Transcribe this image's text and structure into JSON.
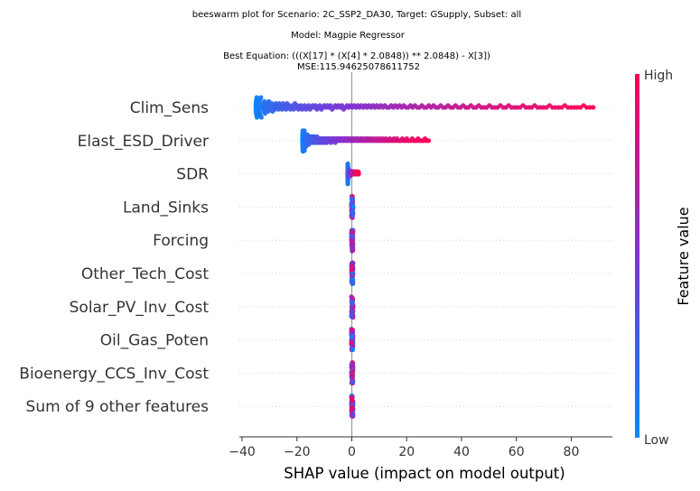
{
  "titles": {
    "line1": "beeswarm plot for Scenario: 2C_SSP2_DA30, Target: GSupply, Subset: all",
    "line2": "Model: Magpie Regressor",
    "line3": "Best Equation: (((X[17] * (X[4] * 2.0848)) ** 2.0848) - X[3])",
    "line4": "MSE:115.94625078611752"
  },
  "colors": {
    "low": "#008bfb",
    "mid": "#7c35d6",
    "high": "#ff0052",
    "zero_line": "#999999",
    "row_line": "#cccccc"
  },
  "chart_data": {
    "type": "scatter",
    "subtype": "beeswarm",
    "xlabel": "SHAP value (impact on model output)",
    "xlim": [
      -41,
      95
    ],
    "xticks": [
      -40,
      -20,
      0,
      20,
      40,
      60,
      80
    ],
    "colorbar": {
      "title": "Feature value",
      "high_label": "High",
      "low_label": "Low"
    },
    "features": [
      {
        "name": "Clim_Sens",
        "shap_min": -35,
        "shap_max": 88,
        "shap_mean_abs": 18
      },
      {
        "name": "Elast_ESD_Driver",
        "shap_min": -18,
        "shap_max": 28,
        "shap_mean_abs": 6
      },
      {
        "name": "SDR",
        "shap_min": -1.5,
        "shap_max": 2.5,
        "shap_mean_abs": 0.6
      },
      {
        "name": "Land_Sinks",
        "shap_min": 0,
        "shap_max": 0.5,
        "shap_mean_abs": 0
      },
      {
        "name": "Forcing",
        "shap_min": 0,
        "shap_max": 0.5,
        "shap_mean_abs": 0
      },
      {
        "name": "Other_Tech_Cost",
        "shap_min": 0,
        "shap_max": 0.5,
        "shap_mean_abs": 0
      },
      {
        "name": "Solar_PV_Inv_Cost",
        "shap_min": 0,
        "shap_max": 0.5,
        "shap_mean_abs": 0
      },
      {
        "name": "Oil_Gas_Poten",
        "shap_min": 0,
        "shap_max": 0.5,
        "shap_mean_abs": 0
      },
      {
        "name": "Bioenergy_CCS_Inv_Cost",
        "shap_min": 0,
        "shap_max": 0.5,
        "shap_mean_abs": 0
      },
      {
        "name": "Sum of 9 other features",
        "shap_min": 0,
        "shap_max": 0.5,
        "shap_mean_abs": 0
      }
    ]
  }
}
